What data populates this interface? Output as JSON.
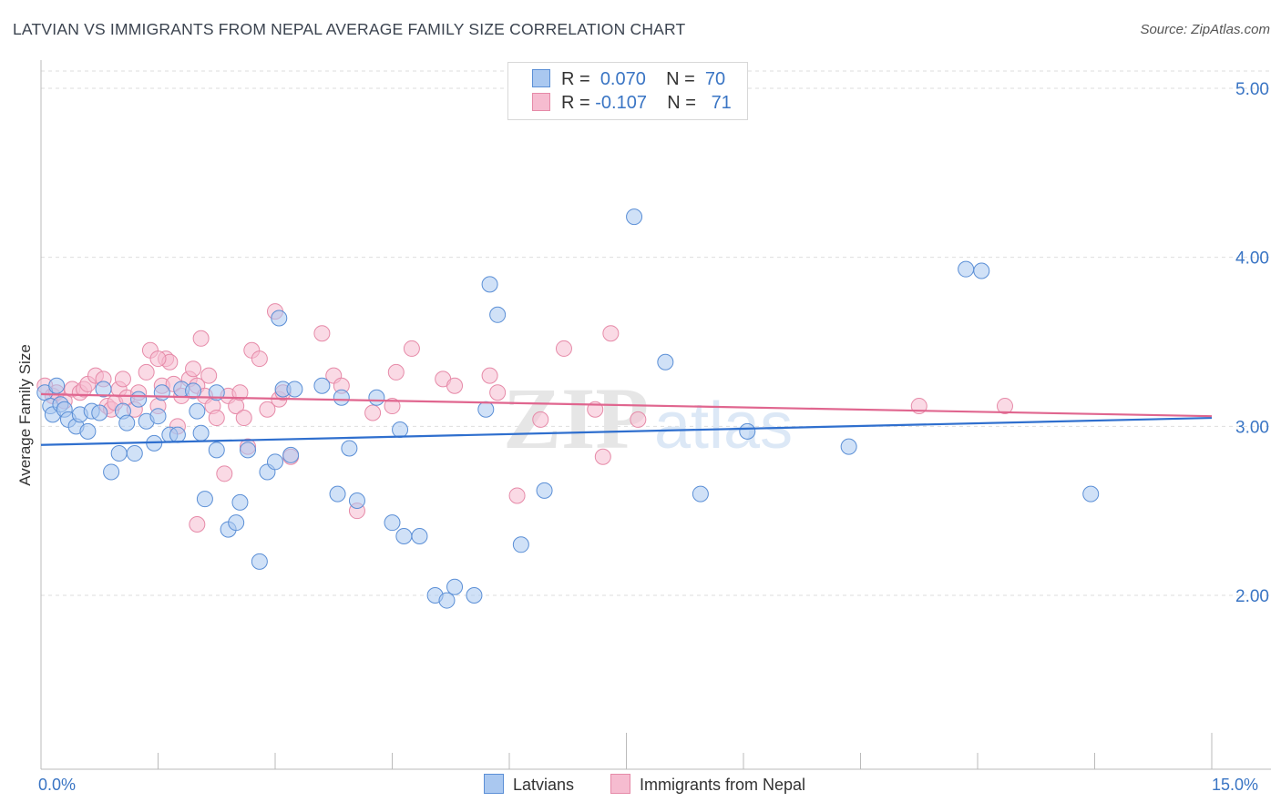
{
  "header": {
    "title": "LATVIAN VS IMMIGRANTS FROM NEPAL AVERAGE FAMILY SIZE CORRELATION CHART",
    "source": "Source: ZipAtlas.com"
  },
  "legend": {
    "rows": [
      {
        "r_label": "R =",
        "r_value": "0.070",
        "n_label": "N =",
        "n_value": "70"
      },
      {
        "r_label": "R =",
        "r_value": "-0.107",
        "n_label": "N =",
        "n_value": "71"
      }
    ]
  },
  "x_axis": {
    "min_label": "0.0%",
    "max_label": "15.0%"
  },
  "watermark": {
    "zip": "ZIP",
    "atlas": "atlas"
  },
  "colors": {
    "latvians_fill": "#aac8f0",
    "latvians_stroke": "#5b8fd6",
    "latvians_line": "#2f6fce",
    "nepal_fill": "#f6bcd0",
    "nepal_stroke": "#e68aa8",
    "nepal_line": "#e0668f",
    "tick_label": "#3a75c4",
    "grid": "#dedede"
  },
  "chart_data": {
    "type": "scatter",
    "title": "LATVIAN VS IMMIGRANTS FROM NEPAL AVERAGE FAMILY SIZE CORRELATION CHART",
    "xlabel": "",
    "ylabel": "Average Family Size",
    "xlim": [
      0,
      15
    ],
    "ylim": [
      1.0,
      5.1
    ],
    "y_ticks": [
      2.0,
      3.0,
      4.0,
      5.0
    ],
    "y_tick_labels": [
      "2.00",
      "3.00",
      "4.00",
      "5.00"
    ],
    "grid": "horizontal dashed",
    "legend_placement": "bottom",
    "series": [
      {
        "name": "Latvians",
        "r": 0.07,
        "n": 70,
        "trend": {
          "x": [
            0,
            15
          ],
          "y": [
            2.89,
            3.05
          ]
        },
        "points": [
          [
            0.05,
            3.2
          ],
          [
            0.12,
            3.12
          ],
          [
            0.15,
            3.07
          ],
          [
            0.2,
            3.24
          ],
          [
            0.25,
            3.13
          ],
          [
            0.3,
            3.1
          ],
          [
            0.35,
            3.04
          ],
          [
            0.45,
            3.0
          ],
          [
            0.5,
            3.07
          ],
          [
            0.6,
            2.97
          ],
          [
            0.65,
            3.09
          ],
          [
            0.75,
            3.08
          ],
          [
            0.8,
            3.22
          ],
          [
            0.9,
            2.73
          ],
          [
            1.0,
            2.84
          ],
          [
            1.05,
            3.09
          ],
          [
            1.1,
            3.02
          ],
          [
            1.2,
            2.84
          ],
          [
            1.25,
            3.16
          ],
          [
            1.35,
            3.03
          ],
          [
            1.45,
            2.9
          ],
          [
            1.5,
            3.06
          ],
          [
            1.55,
            3.2
          ],
          [
            1.65,
            2.95
          ],
          [
            1.75,
            2.95
          ],
          [
            1.8,
            3.22
          ],
          [
            1.95,
            3.21
          ],
          [
            2.0,
            3.09
          ],
          [
            2.05,
            2.96
          ],
          [
            2.1,
            2.57
          ],
          [
            2.25,
            2.86
          ],
          [
            2.25,
            3.2
          ],
          [
            2.4,
            2.39
          ],
          [
            2.5,
            2.43
          ],
          [
            2.55,
            2.55
          ],
          [
            2.65,
            2.86
          ],
          [
            2.8,
            2.2
          ],
          [
            2.9,
            2.73
          ],
          [
            3.0,
            2.79
          ],
          [
            3.05,
            3.64
          ],
          [
            3.1,
            3.22
          ],
          [
            3.2,
            2.83
          ],
          [
            3.25,
            3.22
          ],
          [
            3.6,
            3.24
          ],
          [
            3.8,
            2.6
          ],
          [
            3.85,
            3.17
          ],
          [
            3.95,
            2.87
          ],
          [
            4.05,
            2.56
          ],
          [
            4.3,
            3.17
          ],
          [
            4.5,
            2.43
          ],
          [
            4.6,
            2.98
          ],
          [
            4.65,
            2.35
          ],
          [
            4.85,
            2.35
          ],
          [
            5.05,
            2.0
          ],
          [
            5.2,
            1.97
          ],
          [
            5.3,
            2.05
          ],
          [
            5.55,
            2.0
          ],
          [
            5.7,
            3.1
          ],
          [
            5.75,
            3.84
          ],
          [
            5.85,
            3.66
          ],
          [
            6.15,
            2.3
          ],
          [
            6.45,
            2.62
          ],
          [
            7.6,
            4.24
          ],
          [
            8.0,
            3.38
          ],
          [
            8.45,
            2.6
          ],
          [
            9.05,
            2.97
          ],
          [
            10.35,
            2.88
          ],
          [
            11.85,
            3.93
          ],
          [
            12.05,
            3.92
          ],
          [
            13.45,
            2.6
          ]
        ]
      },
      {
        "name": "Immigrants from Nepal",
        "r": -0.107,
        "n": 71,
        "trend": {
          "x": [
            0,
            15
          ],
          "y": [
            3.19,
            3.06
          ]
        },
        "points": [
          [
            0.05,
            3.24
          ],
          [
            0.15,
            3.18
          ],
          [
            0.2,
            3.2
          ],
          [
            0.3,
            3.15
          ],
          [
            0.4,
            3.22
          ],
          [
            0.5,
            3.2
          ],
          [
            0.55,
            3.22
          ],
          [
            0.6,
            3.25
          ],
          [
            0.7,
            3.3
          ],
          [
            0.8,
            3.28
          ],
          [
            0.85,
            3.12
          ],
          [
            0.9,
            3.1
          ],
          [
            0.95,
            3.14
          ],
          [
            1.0,
            3.22
          ],
          [
            1.05,
            3.28
          ],
          [
            1.1,
            3.17
          ],
          [
            1.2,
            3.1
          ],
          [
            1.25,
            3.2
          ],
          [
            1.35,
            3.32
          ],
          [
            1.4,
            3.45
          ],
          [
            1.5,
            3.12
          ],
          [
            1.55,
            3.24
          ],
          [
            1.6,
            3.4
          ],
          [
            1.65,
            3.38
          ],
          [
            1.7,
            3.25
          ],
          [
            1.75,
            3.0
          ],
          [
            1.8,
            3.18
          ],
          [
            1.9,
            3.28
          ],
          [
            1.95,
            3.34
          ],
          [
            2.0,
            3.24
          ],
          [
            2.05,
            3.52
          ],
          [
            2.1,
            3.18
          ],
          [
            2.15,
            3.3
          ],
          [
            2.2,
            3.12
          ],
          [
            2.25,
            3.05
          ],
          [
            2.35,
            2.72
          ],
          [
            2.4,
            3.18
          ],
          [
            2.5,
            3.12
          ],
          [
            2.55,
            3.2
          ],
          [
            2.6,
            3.05
          ],
          [
            2.65,
            2.88
          ],
          [
            2.7,
            3.45
          ],
          [
            2.8,
            3.4
          ],
          [
            2.9,
            3.1
          ],
          [
            3.0,
            3.68
          ],
          [
            3.05,
            3.16
          ],
          [
            3.1,
            3.2
          ],
          [
            3.2,
            2.82
          ],
          [
            3.6,
            3.55
          ],
          [
            3.75,
            3.3
          ],
          [
            3.85,
            3.24
          ],
          [
            4.05,
            2.5
          ],
          [
            4.25,
            3.08
          ],
          [
            4.5,
            3.12
          ],
          [
            4.55,
            3.32
          ],
          [
            4.75,
            3.46
          ],
          [
            5.15,
            3.28
          ],
          [
            5.3,
            3.24
          ],
          [
            5.75,
            3.3
          ],
          [
            5.85,
            3.2
          ],
          [
            6.1,
            2.59
          ],
          [
            6.4,
            3.04
          ],
          [
            6.7,
            3.46
          ],
          [
            7.1,
            3.1
          ],
          [
            7.2,
            2.82
          ],
          [
            7.3,
            3.55
          ],
          [
            7.65,
            3.04
          ],
          [
            11.25,
            3.12
          ],
          [
            12.35,
            3.12
          ],
          [
            2.0,
            2.42
          ],
          [
            1.5,
            3.4
          ]
        ]
      }
    ]
  }
}
